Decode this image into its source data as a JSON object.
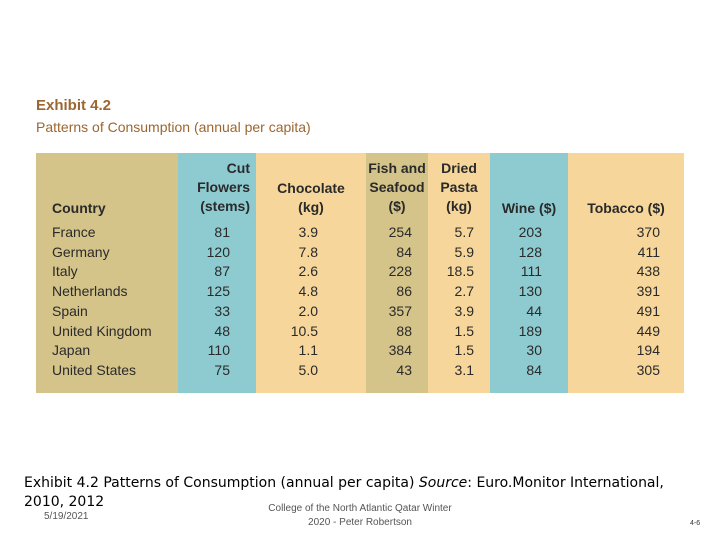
{
  "exhibit": {
    "title": "Exhibit 4.2",
    "subtitle": "Patterns of Consumption  (annual per capita)"
  },
  "colors": {
    "tan": "#d4c48a",
    "blue": "#8ecbd1",
    "peach": "#f6d69a",
    "text": "#2a2a2a",
    "title": "#9c6630"
  },
  "table": {
    "columns": [
      {
        "header": "Country",
        "values": [
          "France",
          "Germany",
          "Italy",
          "Netherlands",
          "Spain",
          "United Kingdom",
          "Japan",
          "United States"
        ]
      },
      {
        "header": "Cut Flowers (stems)",
        "header_lines": [
          "Cut",
          "Flowers",
          "(stems)"
        ],
        "values": [
          "81",
          "120",
          "87",
          "125",
          "33",
          "48",
          "110",
          "75"
        ]
      },
      {
        "header": "Chocolate (kg)",
        "header_lines": [
          "Chocolate",
          "(kg)"
        ],
        "values": [
          "3.9",
          "7.8",
          "2.6",
          "4.8",
          "2.0",
          "10.5",
          "1.1",
          "5.0"
        ]
      },
      {
        "header": "Fish and Seafood ($)",
        "header_lines": [
          "Fish and",
          "Seafood",
          "($)"
        ],
        "values": [
          "254",
          "84",
          "228",
          "86",
          "357",
          "88",
          "384",
          "43"
        ]
      },
      {
        "header": "Dried Pasta (kg)",
        "header_lines": [
          "Dried",
          "Pasta",
          "(kg)"
        ],
        "values": [
          "5.7",
          "5.9",
          "18.5",
          "2.7",
          "3.9",
          "1.5",
          "1.5",
          "3.1"
        ]
      },
      {
        "header": "Wine ($)",
        "header_lines": [
          "Wine ($)"
        ],
        "values": [
          "203",
          "128",
          "111",
          "130",
          "44",
          "189",
          "30",
          "84"
        ]
      },
      {
        "header": "Tobacco ($)",
        "header_lines": [
          "Tobacco ($)"
        ],
        "values": [
          "370",
          "411",
          "438",
          "391",
          "491",
          "449",
          "194",
          "305"
        ]
      }
    ]
  },
  "caption": {
    "main": "Exhibit 4.2 Patterns of Consumption (annual per capita) ",
    "source_label": "Source",
    "rest": ": Euro.Monitor International, 2010, 2012"
  },
  "footer": {
    "date": "5/19/2021",
    "credit_line1": "College of the North Atlantic Qatar Winter",
    "credit_line2": "2020 - Peter Robertson",
    "page": "4-6"
  }
}
